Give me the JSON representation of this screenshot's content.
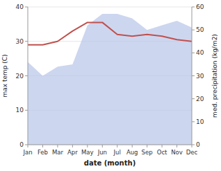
{
  "chart_data": {
    "type": "line",
    "xlabel": "date (month)",
    "ylabel": "max temp (C)",
    "y2label": "med. precipitation (kg/m2)",
    "categories": [
      "Jan",
      "Feb",
      "Mar",
      "Apr",
      "May",
      "Jun",
      "Jul",
      "Aug",
      "Sep",
      "Oct",
      "Nov",
      "Dec"
    ],
    "series": [
      {
        "type": "area",
        "axis": "y2",
        "color": "#b8c4e8",
        "values": [
          36,
          30,
          34,
          35,
          52,
          57,
          57,
          55,
          50,
          52,
          54,
          51
        ]
      },
      {
        "type": "line",
        "color": "#c0504d",
        "values": [
          29.0,
          29.0,
          30.0,
          33.0,
          35.5,
          35.5,
          32.0,
          31.5,
          32.0,
          31.5,
          30.5,
          30.0
        ]
      }
    ],
    "ylim": [
      0,
      40
    ],
    "yticks": [
      0,
      10,
      20,
      30,
      40
    ],
    "y2lim": [
      0,
      60
    ],
    "y2ticks": [
      0,
      10,
      20,
      30,
      40,
      50,
      60
    ],
    "grid": true
  }
}
